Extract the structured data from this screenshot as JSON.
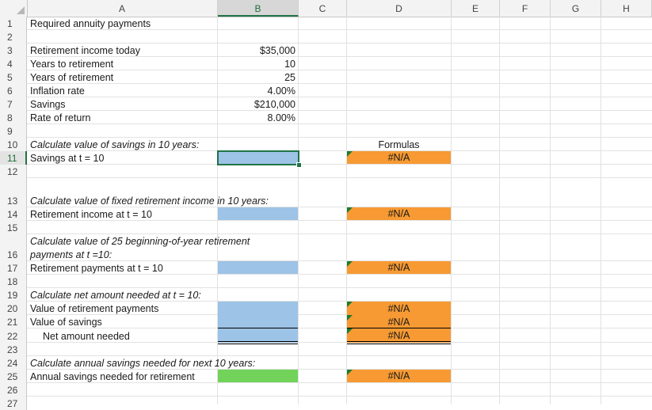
{
  "columns": [
    "A",
    "B",
    "C",
    "D",
    "E",
    "F",
    "G",
    "H"
  ],
  "rows": [
    "1",
    "2",
    "3",
    "4",
    "5",
    "6",
    "7",
    "8",
    "9",
    "10",
    "11",
    "12",
    "13",
    "14",
    "15",
    "16",
    "17",
    "18",
    "19",
    "20",
    "21",
    "22",
    "23",
    "24",
    "25",
    "26",
    "27"
  ],
  "selected_cell": "B11",
  "cells": {
    "A1": "Required annuity payments",
    "A3": "Retirement income today",
    "A4": "Years to retirement",
    "A5": "Years of retirement",
    "A6": "Inflation rate",
    "A7": "Savings",
    "A8": "Rate of return",
    "B3": "$35,000",
    "B4": "10",
    "B5": "25",
    "B6": "4.00%",
    "B7": "$210,000",
    "B8": "8.00%",
    "A10": "Calculate value of savings in 10 years:",
    "D10": "Formulas",
    "A11": "Savings at t = 10",
    "D11": "#N/A",
    "A13": "Calculate value of fixed retirement income in 10 years:",
    "A14": "Retirement income at t = 10",
    "D14": "#N/A",
    "A16_line1": "Calculate value of 25 beginning-of-year retirement",
    "A16_line2": "payments at t =10:",
    "A17": "Retirement payments at t = 10",
    "D17": "#N/A",
    "A19": "Calculate net amount needed at t = 10:",
    "A20": "Value of retirement payments",
    "D20": "#N/A",
    "A21": "Value of savings",
    "D21": "#N/A",
    "A22": "Net amount needed",
    "D22": "#N/A",
    "A24": "Calculate annual savings needed for next 10 years:",
    "A25": "Annual savings needed for retirement",
    "D25": "#N/A"
  },
  "colors": {
    "input_blue": "#9dc3e6",
    "formula_orange": "#f79a33",
    "result_green": "#71d35a",
    "selection_green": "#217346"
  }
}
